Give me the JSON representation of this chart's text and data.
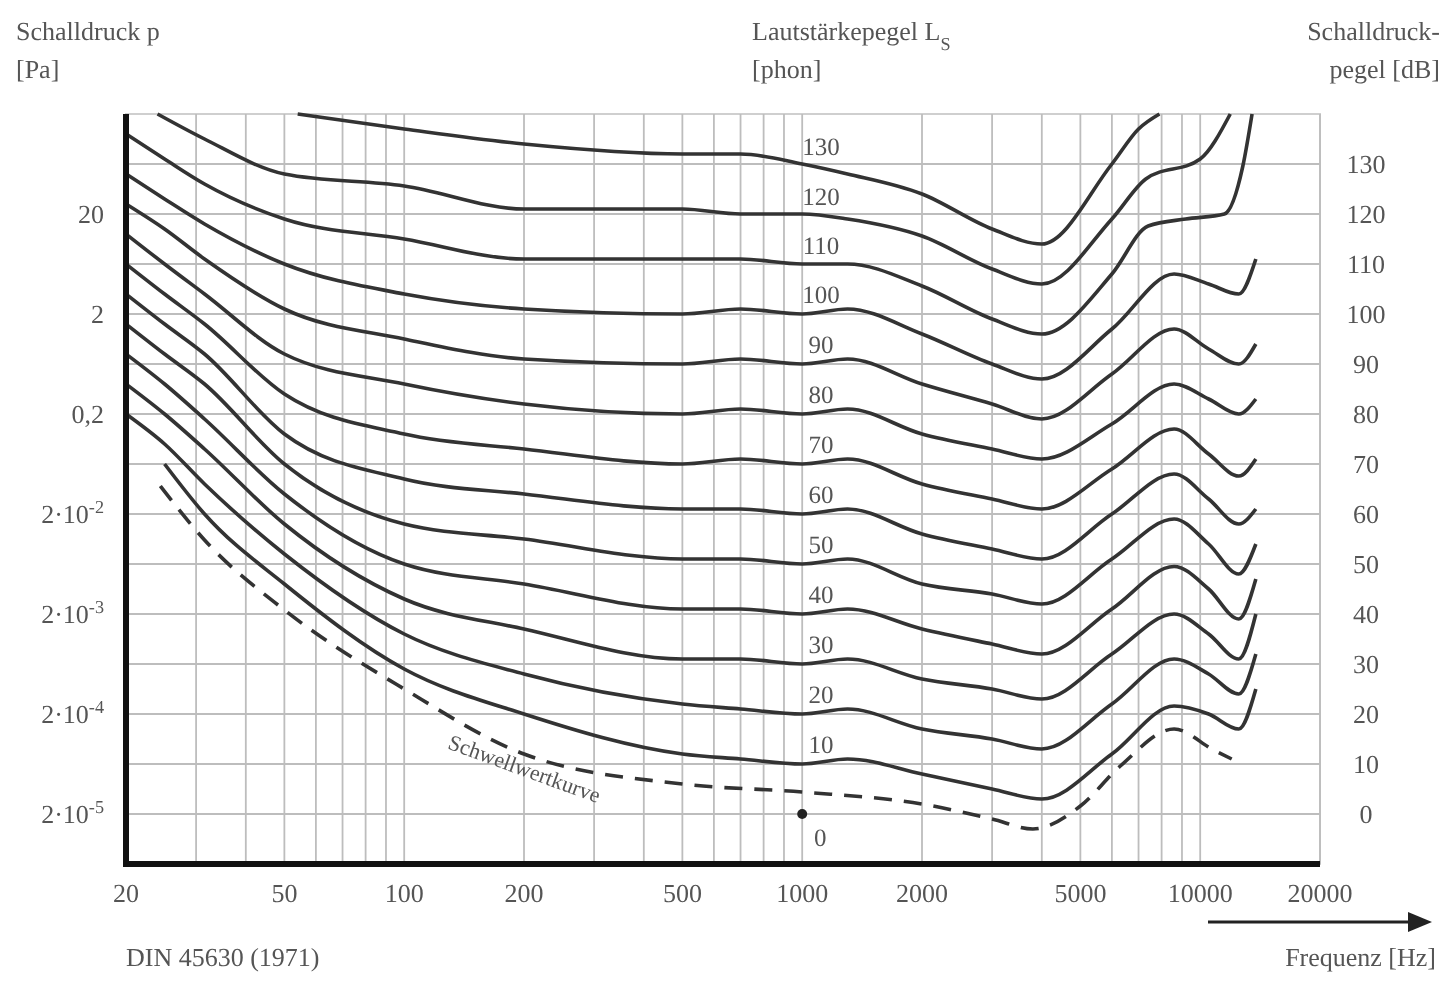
{
  "chart_data": {
    "type": "line",
    "title": "Lautstärkepegel L$_{S}$ [phon]",
    "y2label": "Schalldruck-pegel [dB]",
    "ylabel": "Schalldruck p [Pa]",
    "xlabel": "Frequenz [Hz]",
    "log": "xy",
    "grid": true,
    "xlim": [
      20,
      20000
    ],
    "xticks": [
      20,
      {
        "value": 30,
        "label": null
      },
      {
        "value": 40,
        "label": null
      },
      50,
      {
        "value": 60,
        "label": null
      },
      {
        "value": 70,
        "label": null
      },
      {
        "value": 80,
        "label": null
      },
      {
        "value": 90,
        "label": null
      },
      100,
      200,
      {
        "value": 300,
        "label": null
      },
      {
        "value": 400,
        "label": null
      },
      500,
      {
        "value": 600,
        "label": null
      },
      {
        "value": 700,
        "label": null
      },
      {
        "value": 800,
        "label": null
      },
      {
        "value": 900,
        "label": null
      },
      1000,
      2000,
      {
        "value": 3000,
        "label": null
      },
      {
        "value": 4000,
        "label": null
      },
      5000,
      {
        "value": 6000,
        "label": null
      },
      {
        "value": 7000,
        "label": null
      },
      {
        "value": 8000,
        "label": null
      },
      {
        "value": 9000,
        "label": null
      },
      10000,
      20000
    ],
    "y2lim": [
      -10,
      140
    ],
    "y2ticks": [
      0,
      10,
      20,
      30,
      40,
      50,
      60,
      70,
      80,
      90,
      100,
      110,
      120,
      130
    ],
    "ylim": [
      6.32e-06,
      200
    ],
    "yticks": [
      {
        "value": 20,
        "label": "20"
      },
      {
        "value": 2,
        "label": "2"
      },
      {
        "value": 0.2,
        "label": "0,2"
      },
      {
        "value": 0.02,
        "label": "2·10$^{-2}$"
      },
      {
        "value": 0.002,
        "label": "2·10$^{-3}$"
      },
      {
        "value": 0.0002,
        "label": "2·10$^{-4}$"
      },
      {
        "value": 2e-05,
        "label": "2·10$^{-5}$"
      }
    ],
    "series": [
      {
        "name": "130",
        "axis": "y2",
        "color": "#333333",
        "x": [
          54,
          100,
          200,
          500,
          700,
          1000,
          1300,
          2000,
          3000,
          4000,
          6000,
          7000,
          7900
        ],
        "values": [
          140,
          137,
          134,
          132,
          132,
          130,
          128,
          124,
          117,
          114,
          130,
          137,
          140
        ]
      },
      {
        "name": "120",
        "axis": "y2",
        "color": "#333333",
        "x": [
          24,
          31.5,
          50,
          100,
          200,
          500,
          700,
          1000,
          1300,
          2000,
          3000,
          4000,
          6000,
          7300,
          10000,
          11900
        ],
        "values": [
          140,
          135,
          128,
          125.6,
          121,
          121,
          120,
          120,
          119,
          115.6,
          109,
          106,
          119,
          127,
          131,
          140
        ]
      },
      {
        "name": "110",
        "axis": "y2",
        "color": "#333333",
        "x": [
          20,
          25,
          31.5,
          50,
          100,
          200,
          500,
          700,
          1000,
          1300,
          2000,
          3000,
          4000,
          6000,
          7400,
          9200,
          11500,
          12800,
          13500
        ],
        "values": [
          136,
          131,
          126,
          119,
          115,
          111,
          111,
          111,
          110,
          110,
          105.6,
          99,
          96,
          108,
          117.6,
          119,
          120,
          129.6,
          140
        ]
      },
      {
        "name": "100",
        "axis": "y2",
        "color": "#333333",
        "x": [
          20,
          25,
          31.5,
          50,
          100,
          200,
          500,
          700,
          1000,
          1300,
          2000,
          3000,
          4000,
          6000,
          8600,
          10500,
          12500,
          13800
        ],
        "values": [
          128,
          123,
          118,
          110,
          104,
          101,
          100,
          101,
          100,
          101,
          96,
          90,
          87,
          97,
          108,
          106,
          104,
          111
        ]
      },
      {
        "name": "90",
        "axis": "y2",
        "color": "#333333",
        "x": [
          20,
          25,
          31.5,
          50,
          100,
          200,
          500,
          700,
          1000,
          1300,
          2000,
          3000,
          4000,
          6000,
          8600,
          10500,
          12500,
          13800
        ],
        "values": [
          122,
          117,
          111,
          101,
          95,
          91,
          90,
          91,
          90,
          91,
          86,
          82,
          79,
          88,
          97,
          93,
          90,
          94
        ]
      },
      {
        "name": "80",
        "axis": "y2",
        "color": "#333333",
        "x": [
          20,
          25,
          31.5,
          50,
          100,
          200,
          500,
          700,
          1000,
          1300,
          2000,
          3000,
          4000,
          6000,
          8600,
          10500,
          12500,
          13800
        ],
        "values": [
          116,
          110,
          104,
          92,
          86,
          82,
          80,
          81,
          80,
          81,
          76,
          73,
          71,
          78,
          86,
          83,
          80,
          83
        ]
      },
      {
        "name": "70",
        "axis": "y2",
        "color": "#333333",
        "x": [
          20,
          25,
          31.5,
          50,
          100,
          200,
          500,
          700,
          1000,
          1300,
          2000,
          3000,
          4000,
          6000,
          8600,
          10500,
          12500,
          13800
        ],
        "values": [
          110,
          104,
          98,
          84,
          76,
          73,
          70,
          71,
          70,
          71,
          66,
          63,
          61,
          69,
          77,
          72,
          67.6,
          71
        ]
      },
      {
        "name": "60",
        "axis": "y2",
        "color": "#333333",
        "x": [
          20,
          25,
          31.5,
          50,
          100,
          200,
          500,
          700,
          1000,
          1300,
          2000,
          3000,
          4000,
          6000,
          8600,
          10500,
          12500,
          13800
        ],
        "values": [
          104,
          98,
          92,
          76,
          67,
          64,
          61,
          61,
          60,
          61,
          56,
          53,
          51,
          60,
          68,
          63,
          58,
          61
        ]
      },
      {
        "name": "50",
        "axis": "y2",
        "color": "#333333",
        "x": [
          20,
          25,
          31.5,
          50,
          100,
          200,
          500,
          700,
          1000,
          1300,
          2000,
          3000,
          4000,
          6000,
          8600,
          10500,
          12500,
          13800
        ],
        "values": [
          98,
          92,
          86,
          70,
          58,
          55,
          51,
          51,
          50,
          51,
          46,
          44,
          42,
          51,
          59,
          54,
          48,
          54
        ]
      },
      {
        "name": "40",
        "axis": "y2",
        "color": "#333333",
        "x": [
          20,
          25,
          31.5,
          50,
          100,
          200,
          500,
          700,
          1000,
          1300,
          2000,
          3000,
          4000,
          6000,
          8600,
          10500,
          12500,
          13800
        ],
        "values": [
          92,
          86,
          79,
          64,
          50,
          46,
          41,
          41,
          40,
          41,
          37,
          34,
          32,
          41,
          49.5,
          45,
          39,
          47
        ]
      },
      {
        "name": "30",
        "axis": "y2",
        "color": "#333333",
        "x": [
          20,
          25,
          31.5,
          50,
          100,
          200,
          500,
          700,
          1000,
          1300,
          2000,
          3000,
          4000,
          6000,
          8600,
          10500,
          12500,
          13800
        ],
        "values": [
          86,
          80,
          73,
          58,
          43,
          37,
          31,
          31,
          30,
          31,
          27,
          25,
          23,
          32,
          40,
          36,
          31,
          40
        ]
      },
      {
        "name": "20",
        "axis": "y2",
        "color": "#333333",
        "x": [
          20,
          25,
          31.5,
          50,
          100,
          200,
          500,
          700,
          1000,
          1300,
          2000,
          3000,
          4000,
          6000,
          8600,
          10500,
          12500,
          13800
        ],
        "values": [
          80,
          74,
          66,
          52,
          36,
          28,
          22,
          21,
          20,
          21,
          17,
          15,
          13,
          22,
          31,
          28,
          24,
          32
        ]
      },
      {
        "name": "10",
        "axis": "y2",
        "color": "#333333",
        "x": [
          25,
          31.5,
          50,
          100,
          200,
          500,
          700,
          1000,
          1300,
          2000,
          3000,
          4000,
          6000,
          8600,
          10500,
          12500,
          13800
        ],
        "values": [
          70,
          60,
          46,
          29,
          20,
          12,
          11,
          10,
          11,
          8,
          5,
          3,
          12,
          21.6,
          20,
          17,
          25
        ]
      },
      {
        "axis": "y2",
        "color": "#333333",
        "line_style": "dashed",
        "x": [
          24.4,
          31.5,
          50,
          100,
          200,
          500,
          1000,
          2000,
          3000,
          3800,
          5000,
          6300,
          8600,
          10800,
          12000
        ],
        "values": [
          65.6,
          54.8,
          40.8,
          25,
          12,
          6,
          4.4,
          2,
          -1,
          -3,
          1.6,
          9.6,
          17,
          12.8,
          11
        ]
      },
      {
        "type": "scatter",
        "axis": "y2",
        "name": "0",
        "color": "#222222",
        "marker": "circle",
        "x": [
          1000
        ],
        "values": [
          0
        ]
      }
    ],
    "annotations": [
      "Schwellwertkurve",
      "DIN 45630 (1971)"
    ]
  }
}
